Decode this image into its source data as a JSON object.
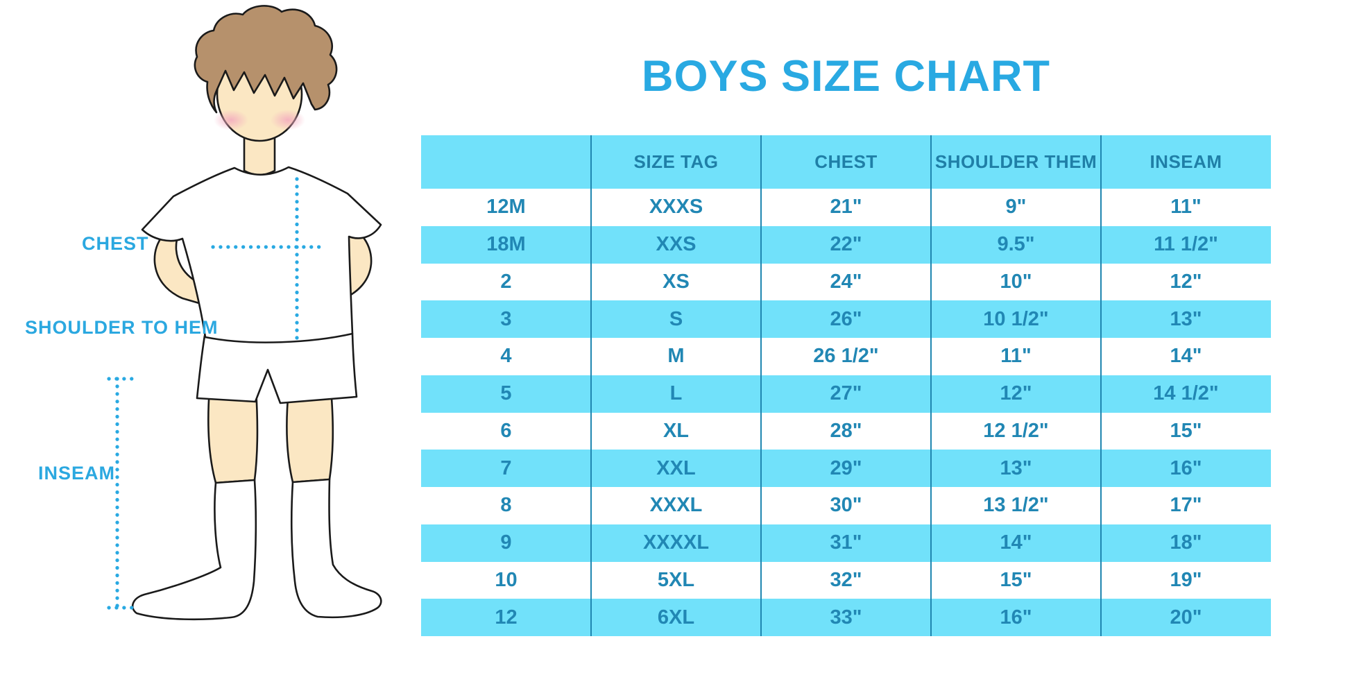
{
  "title": "BOYS SIZE CHART",
  "diagram": {
    "chest_label": "CHEST",
    "shoulder_to_hem_label": "SHOULDER TO HEM",
    "inseam_label": "INSEAM"
  },
  "colors": {
    "accent_blue": "#29A9E2",
    "band_blue": "#71E1FA",
    "table_text": "#2187B4",
    "header_text": "#1F7FA7",
    "column_line": "#1F86B0",
    "hair_brown": "#B6916C",
    "skin": "#FBE7C3",
    "blush_pink": "#F3A9BE"
  },
  "chart_data": {
    "type": "table",
    "title": "BOYS SIZE CHART",
    "columns": [
      "",
      "SIZE TAG",
      "CHEST",
      "SHOULDER THEM",
      "INSEAM"
    ],
    "rows": [
      [
        "12M",
        "XXXS",
        "21\"",
        "9\"",
        "11\""
      ],
      [
        "18M",
        "XXS",
        "22\"",
        "9.5\"",
        "11 1/2\""
      ],
      [
        "2",
        "XS",
        "24\"",
        "10\"",
        "12\""
      ],
      [
        "3",
        "S",
        "26\"",
        "10 1/2\"",
        "13\""
      ],
      [
        "4",
        "M",
        "26 1/2\"",
        "11\"",
        "14\""
      ],
      [
        "5",
        "L",
        "27\"",
        "12\"",
        "14 1/2\""
      ],
      [
        "6",
        "XL",
        "28\"",
        "12 1/2\"",
        "15\""
      ],
      [
        "7",
        "XXL",
        "29\"",
        "13\"",
        "16\""
      ],
      [
        "8",
        "XXXL",
        "30\"",
        "13 1/2\"",
        "17\""
      ],
      [
        "9",
        "XXXXL",
        "31\"",
        "14\"",
        "18\""
      ],
      [
        "10",
        "5XL",
        "32\"",
        "15\"",
        "19\""
      ],
      [
        "12",
        "6XL",
        "33\"",
        "16\"",
        "20\""
      ]
    ],
    "layout": {
      "header_banded": true,
      "row_banding": "alternating white / light blue",
      "gridlines": "vertical column separators only"
    }
  }
}
